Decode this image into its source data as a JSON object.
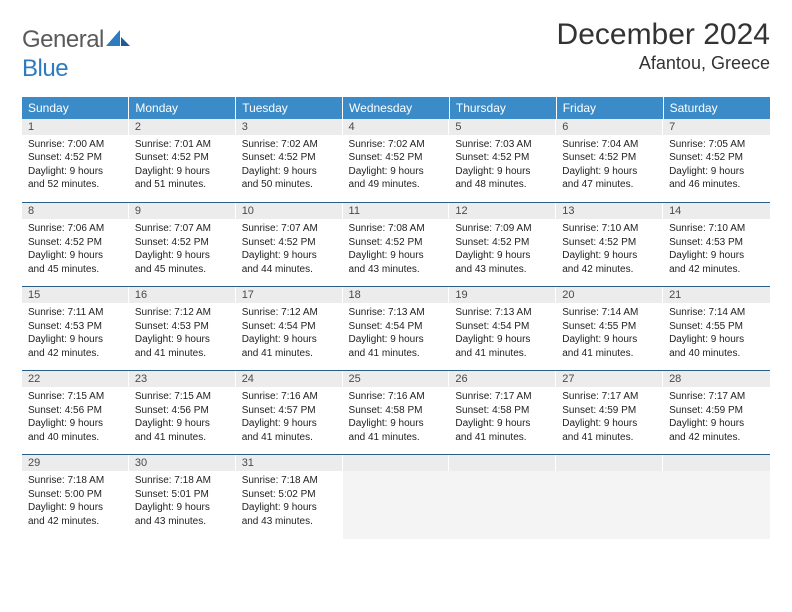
{
  "logo": {
    "word1": "General",
    "word2": "Blue"
  },
  "title": "December 2024",
  "location": "Afantou, Greece",
  "colors": {
    "header_bg": "#3b8bc8",
    "header_text": "#ffffff",
    "daynum_bg": "#ececec",
    "daynum_text": "#4a4a4a",
    "rule": "#2a5f8a",
    "body_text": "#222222",
    "logo_gray": "#5a5a5a",
    "logo_blue": "#2f7bbf"
  },
  "weekdays": [
    "Sunday",
    "Monday",
    "Tuesday",
    "Wednesday",
    "Thursday",
    "Friday",
    "Saturday"
  ],
  "weeks": [
    [
      {
        "n": "1",
        "sr": "Sunrise: 7:00 AM",
        "ss": "Sunset: 4:52 PM",
        "d1": "Daylight: 9 hours",
        "d2": "and 52 minutes."
      },
      {
        "n": "2",
        "sr": "Sunrise: 7:01 AM",
        "ss": "Sunset: 4:52 PM",
        "d1": "Daylight: 9 hours",
        "d2": "and 51 minutes."
      },
      {
        "n": "3",
        "sr": "Sunrise: 7:02 AM",
        "ss": "Sunset: 4:52 PM",
        "d1": "Daylight: 9 hours",
        "d2": "and 50 minutes."
      },
      {
        "n": "4",
        "sr": "Sunrise: 7:02 AM",
        "ss": "Sunset: 4:52 PM",
        "d1": "Daylight: 9 hours",
        "d2": "and 49 minutes."
      },
      {
        "n": "5",
        "sr": "Sunrise: 7:03 AM",
        "ss": "Sunset: 4:52 PM",
        "d1": "Daylight: 9 hours",
        "d2": "and 48 minutes."
      },
      {
        "n": "6",
        "sr": "Sunrise: 7:04 AM",
        "ss": "Sunset: 4:52 PM",
        "d1": "Daylight: 9 hours",
        "d2": "and 47 minutes."
      },
      {
        "n": "7",
        "sr": "Sunrise: 7:05 AM",
        "ss": "Sunset: 4:52 PM",
        "d1": "Daylight: 9 hours",
        "d2": "and 46 minutes."
      }
    ],
    [
      {
        "n": "8",
        "sr": "Sunrise: 7:06 AM",
        "ss": "Sunset: 4:52 PM",
        "d1": "Daylight: 9 hours",
        "d2": "and 45 minutes."
      },
      {
        "n": "9",
        "sr": "Sunrise: 7:07 AM",
        "ss": "Sunset: 4:52 PM",
        "d1": "Daylight: 9 hours",
        "d2": "and 45 minutes."
      },
      {
        "n": "10",
        "sr": "Sunrise: 7:07 AM",
        "ss": "Sunset: 4:52 PM",
        "d1": "Daylight: 9 hours",
        "d2": "and 44 minutes."
      },
      {
        "n": "11",
        "sr": "Sunrise: 7:08 AM",
        "ss": "Sunset: 4:52 PM",
        "d1": "Daylight: 9 hours",
        "d2": "and 43 minutes."
      },
      {
        "n": "12",
        "sr": "Sunrise: 7:09 AM",
        "ss": "Sunset: 4:52 PM",
        "d1": "Daylight: 9 hours",
        "d2": "and 43 minutes."
      },
      {
        "n": "13",
        "sr": "Sunrise: 7:10 AM",
        "ss": "Sunset: 4:52 PM",
        "d1": "Daylight: 9 hours",
        "d2": "and 42 minutes."
      },
      {
        "n": "14",
        "sr": "Sunrise: 7:10 AM",
        "ss": "Sunset: 4:53 PM",
        "d1": "Daylight: 9 hours",
        "d2": "and 42 minutes."
      }
    ],
    [
      {
        "n": "15",
        "sr": "Sunrise: 7:11 AM",
        "ss": "Sunset: 4:53 PM",
        "d1": "Daylight: 9 hours",
        "d2": "and 42 minutes."
      },
      {
        "n": "16",
        "sr": "Sunrise: 7:12 AM",
        "ss": "Sunset: 4:53 PM",
        "d1": "Daylight: 9 hours",
        "d2": "and 41 minutes."
      },
      {
        "n": "17",
        "sr": "Sunrise: 7:12 AM",
        "ss": "Sunset: 4:54 PM",
        "d1": "Daylight: 9 hours",
        "d2": "and 41 minutes."
      },
      {
        "n": "18",
        "sr": "Sunrise: 7:13 AM",
        "ss": "Sunset: 4:54 PM",
        "d1": "Daylight: 9 hours",
        "d2": "and 41 minutes."
      },
      {
        "n": "19",
        "sr": "Sunrise: 7:13 AM",
        "ss": "Sunset: 4:54 PM",
        "d1": "Daylight: 9 hours",
        "d2": "and 41 minutes."
      },
      {
        "n": "20",
        "sr": "Sunrise: 7:14 AM",
        "ss": "Sunset: 4:55 PM",
        "d1": "Daylight: 9 hours",
        "d2": "and 41 minutes."
      },
      {
        "n": "21",
        "sr": "Sunrise: 7:14 AM",
        "ss": "Sunset: 4:55 PM",
        "d1": "Daylight: 9 hours",
        "d2": "and 40 minutes."
      }
    ],
    [
      {
        "n": "22",
        "sr": "Sunrise: 7:15 AM",
        "ss": "Sunset: 4:56 PM",
        "d1": "Daylight: 9 hours",
        "d2": "and 40 minutes."
      },
      {
        "n": "23",
        "sr": "Sunrise: 7:15 AM",
        "ss": "Sunset: 4:56 PM",
        "d1": "Daylight: 9 hours",
        "d2": "and 41 minutes."
      },
      {
        "n": "24",
        "sr": "Sunrise: 7:16 AM",
        "ss": "Sunset: 4:57 PM",
        "d1": "Daylight: 9 hours",
        "d2": "and 41 minutes."
      },
      {
        "n": "25",
        "sr": "Sunrise: 7:16 AM",
        "ss": "Sunset: 4:58 PM",
        "d1": "Daylight: 9 hours",
        "d2": "and 41 minutes."
      },
      {
        "n": "26",
        "sr": "Sunrise: 7:17 AM",
        "ss": "Sunset: 4:58 PM",
        "d1": "Daylight: 9 hours",
        "d2": "and 41 minutes."
      },
      {
        "n": "27",
        "sr": "Sunrise: 7:17 AM",
        "ss": "Sunset: 4:59 PM",
        "d1": "Daylight: 9 hours",
        "d2": "and 41 minutes."
      },
      {
        "n": "28",
        "sr": "Sunrise: 7:17 AM",
        "ss": "Sunset: 4:59 PM",
        "d1": "Daylight: 9 hours",
        "d2": "and 42 minutes."
      }
    ],
    [
      {
        "n": "29",
        "sr": "Sunrise: 7:18 AM",
        "ss": "Sunset: 5:00 PM",
        "d1": "Daylight: 9 hours",
        "d2": "and 42 minutes."
      },
      {
        "n": "30",
        "sr": "Sunrise: 7:18 AM",
        "ss": "Sunset: 5:01 PM",
        "d1": "Daylight: 9 hours",
        "d2": "and 43 minutes."
      },
      {
        "n": "31",
        "sr": "Sunrise: 7:18 AM",
        "ss": "Sunset: 5:02 PM",
        "d1": "Daylight: 9 hours",
        "d2": "and 43 minutes."
      },
      {
        "empty": true
      },
      {
        "empty": true
      },
      {
        "empty": true
      },
      {
        "empty": true
      }
    ]
  ]
}
